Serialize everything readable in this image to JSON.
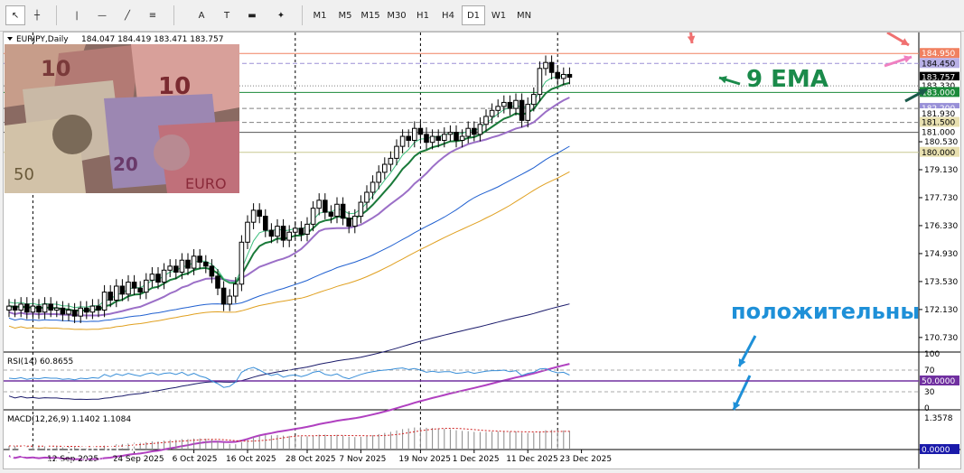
{
  "toolbar": {
    "timeframes": [
      "M1",
      "M5",
      "M15",
      "M30",
      "H1",
      "H4",
      "D1",
      "W1",
      "MN"
    ],
    "active_timeframe": "D1",
    "tools": [
      {
        "name": "cursor-icon",
        "glyph": "↖"
      },
      {
        "name": "crosshair-icon",
        "glyph": "┼"
      },
      {
        "name": "vertical-line-icon",
        "glyph": "|"
      },
      {
        "name": "horizontal-line-icon",
        "glyph": "—"
      },
      {
        "name": "trendline-icon",
        "glyph": "╱"
      },
      {
        "name": "fibonacci-icon",
        "glyph": "≡"
      },
      {
        "name": "text-tool-icon",
        "glyph": "A"
      },
      {
        "name": "text-label-icon",
        "glyph": "T"
      },
      {
        "name": "rectangle-icon",
        "glyph": "▬"
      },
      {
        "name": "shapes-dropdown-icon",
        "glyph": "✦"
      }
    ]
  },
  "chart_data": [
    {
      "type": "candlestick",
      "title": "EURJPY,Daily",
      "ohlc_header": "184.047 184.419 183.471 183.757",
      "ylim": [
        170.0,
        186.0
      ],
      "ytick_values": [
        170.73,
        172.13,
        173.53,
        174.93,
        176.33,
        177.73,
        179.13,
        180.53
      ],
      "ytick_labels": [
        "170.730",
        "172.130",
        "173.530",
        "174.930",
        "176.330",
        "177.730",
        "179.130",
        "180.530"
      ],
      "x_labels": [
        "12 Sep 2025",
        "24 Sep 2025",
        "6 Oct 2025",
        "16 Oct 2025",
        "28 Oct 2025",
        "7 Nov 2025",
        "19 Nov 2025",
        "1 Dec 2025",
        "11 Dec 2025",
        "23 Dec 2025"
      ],
      "x_label_bar_index": [
        10,
        21,
        31,
        40,
        50,
        59,
        69,
        78,
        87,
        96
      ],
      "period_separator_bar_index": [
        4,
        48,
        69,
        92
      ],
      "closes": [
        172.3,
        172.1,
        172.4,
        172.0,
        172.3,
        172.0,
        172.4,
        172.1,
        172.2,
        171.9,
        172.1,
        171.8,
        172.2,
        172.0,
        172.3,
        172.1,
        173.0,
        172.6,
        173.3,
        172.9,
        173.5,
        173.2,
        173.0,
        173.6,
        173.9,
        173.5,
        174.1,
        174.3,
        174.0,
        174.6,
        174.2,
        174.8,
        174.5,
        174.3,
        173.8,
        173.2,
        172.4,
        172.8,
        173.4,
        175.5,
        176.5,
        177.1,
        176.8,
        176.1,
        175.8,
        176.3,
        175.6,
        176.0,
        176.2,
        175.9,
        176.4,
        177.2,
        177.6,
        177.0,
        176.8,
        177.4,
        176.7,
        176.3,
        176.8,
        177.5,
        178.0,
        178.5,
        179.0,
        179.4,
        179.7,
        180.3,
        180.8,
        180.6,
        181.2,
        180.9,
        180.5,
        180.8,
        180.6,
        180.9,
        181.0,
        180.6,
        180.8,
        181.2,
        180.9,
        181.4,
        181.8,
        182.1,
        182.3,
        182.5,
        182.2,
        182.6,
        181.6,
        182.4,
        182.9,
        184.2,
        184.5,
        184.0,
        183.7,
        183.9,
        183.76
      ],
      "levels": [
        {
          "value": 184.95,
          "label": "184.950",
          "color": "#f08060",
          "style": "solid",
          "label_bg": "#f08060"
        },
        {
          "value": 184.45,
          "label": "184.450",
          "color": "#9b8fd6",
          "style": "dashed",
          "label_bg": "#b8b0e6"
        },
        {
          "value": 183.757,
          "label": "183.757",
          "color": "#000000",
          "style": "none",
          "label_bg": "#000000"
        },
        {
          "value": 183.33,
          "label": "183.330",
          "color": "#808080",
          "style": "dotted",
          "label_bg": "#ffffff"
        },
        {
          "value": 183.0,
          "label": "183.000",
          "color": "#1a8a3a",
          "style": "solid",
          "label_bg": "#1a8a3a"
        },
        {
          "value": 182.2,
          "label": "182.200",
          "color": "#808080",
          "style": "dashed",
          "label_bg": "#9890d8"
        },
        {
          "value": 181.93,
          "label": "181.930",
          "color": "#808080",
          "style": "none",
          "label_bg": "#ffffff"
        },
        {
          "value": 181.5,
          "label": "181.500",
          "color": "#808080",
          "style": "dashed",
          "label_bg": "#e8e0b0"
        },
        {
          "value": 181.0,
          "label": "181.000",
          "color": "#555555",
          "style": "solid",
          "label_bg": "#ffffff"
        },
        {
          "value": 180.0,
          "label": "180.000",
          "color": "#c8c890",
          "style": "solid",
          "label_bg": "#e8e0b0"
        }
      ],
      "annotations": [
        {
          "text": "9 EMA",
          "color": "#1a8a4a"
        },
        {
          "text": "положительны",
          "color": "#1e90d8"
        }
      ]
    },
    {
      "type": "line",
      "title": "RSI(14) 60.8655",
      "ylim": [
        0,
        100
      ],
      "ytick_labels": [
        "100",
        "70",
        "50.0000",
        "30",
        "0"
      ],
      "last_value": 60.8655,
      "levels": [
        70,
        50,
        30
      ],
      "values": [
        55,
        54,
        56,
        53,
        55,
        54,
        56,
        55,
        55,
        53,
        54,
        52,
        55,
        54,
        56,
        55,
        62,
        58,
        63,
        60,
        64,
        61,
        59,
        63,
        65,
        61,
        64,
        65,
        62,
        66,
        60,
        64,
        59,
        56,
        50,
        45,
        38,
        40,
        48,
        66,
        72,
        75,
        70,
        64,
        60,
        63,
        57,
        60,
        61,
        58,
        61,
        66,
        68,
        62,
        60,
        63,
        57,
        54,
        58,
        62,
        65,
        67,
        69,
        70,
        71,
        73,
        74,
        71,
        73,
        70,
        66,
        68,
        66,
        67,
        67,
        64,
        65,
        67,
        64,
        66,
        68,
        69,
        69,
        70,
        67,
        69,
        60,
        64,
        66,
        72,
        73,
        68,
        65,
        66,
        60.9
      ]
    },
    {
      "type": "histogram",
      "title": "MACD(12,26,9) 1.1402 1.1084",
      "main_value": 1.1402,
      "signal_value": 1.1084,
      "ymax_label": "1.3578",
      "ymin_label": "0.0000",
      "ylim": [
        0,
        1.3578
      ]
    }
  ],
  "watermark": {
    "name": "instaforex",
    "tagline": "Instant Forex Trading"
  }
}
